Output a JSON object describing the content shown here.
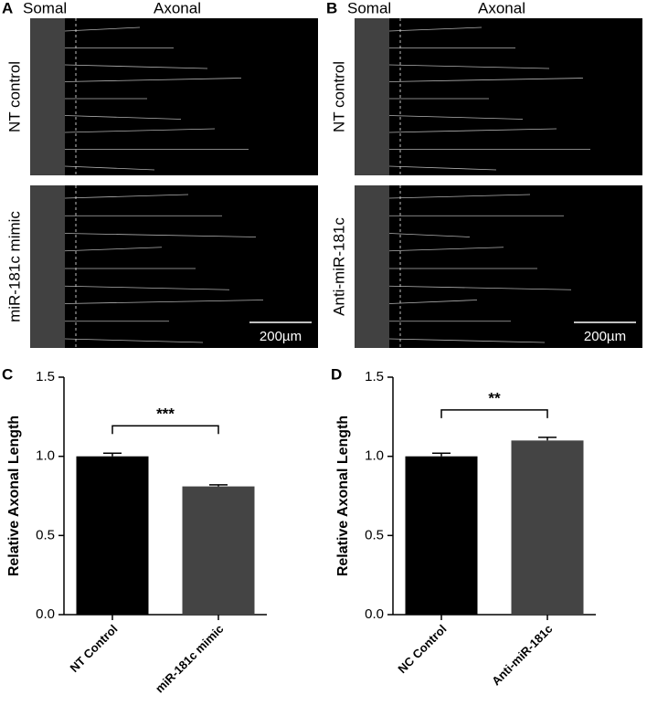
{
  "panels": [
    {
      "label": "A",
      "somal": "Somal",
      "axonal": "Axonal",
      "rows": [
        "NT control",
        "miR-181c mimic"
      ],
      "scale_bar": "200µm"
    },
    {
      "label": "B",
      "somal": "Somal",
      "axonal": "Axonal",
      "rows": [
        "NT control",
        "Anti-miR-181c"
      ],
      "scale_bar": "200µm"
    }
  ],
  "chart_data": [
    {
      "type": "bar",
      "panel_label": "C",
      "ylabel": "Relative Axonal Length",
      "categories": [
        "NT Control",
        "miR-181c mimic"
      ],
      "values": [
        1.0,
        0.81
      ],
      "errors": [
        0.02,
        0.01
      ],
      "colors": [
        "#000000",
        "#444444"
      ],
      "significance": "***",
      "ylim": [
        0,
        1.5
      ],
      "yticks": [
        {
          "value": 0,
          "label": "0.0"
        },
        0.5,
        {
          "value": 1,
          "label": "1.0"
        },
        1.5
      ]
    },
    {
      "type": "bar",
      "panel_label": "D",
      "ylabel": "Relative Axonal Length",
      "categories": [
        "NC Control",
        "Anti-miR-181c"
      ],
      "values": [
        1.0,
        1.1
      ],
      "errors": [
        0.02,
        0.02
      ],
      "colors": [
        "#000000",
        "#444444"
      ],
      "significance": "**",
      "ylim": [
        0,
        1.5
      ],
      "yticks": [
        {
          "value": 0,
          "label": "0.0"
        },
        0.5,
        {
          "value": 1,
          "label": "1.0"
        },
        1.5
      ]
    }
  ]
}
